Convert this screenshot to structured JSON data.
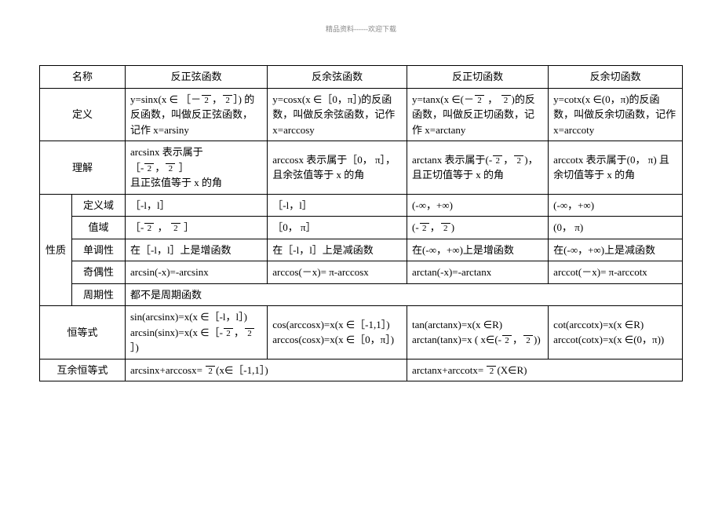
{
  "pageHeader": "精品资料------欢迎下载",
  "header": {
    "name": "名称",
    "arcsin": "反正弦函数",
    "arccos": "反余弦函数",
    "arctan": "反正切函数",
    "arccot": "反余切函数"
  },
  "def": {
    "label": "定义",
    "arcsin_a": "y=sinx(x  ∈ ［－",
    "arcsin_b": "，",
    "arcsin_c": "］)  的反函数，叫做反正弦函数，记作 x=arsiny",
    "arccos_a": "y=cosx(x  ∈［0，π］)的反函数，叫做反余弦函数，记作 x=arccosy",
    "arctan_a": "y=tanx(x   ∈(－",
    "arctan_b": " ，  ",
    "arctan_c": ")的反函数，叫做反正切函数，记作 x=arctany",
    "arccot_a": "y=cotx(x   ∈(0，π)的反函数，叫做反余切函数，记作 x=arccoty"
  },
  "und": {
    "label": "理解",
    "arcsin_a": "arcsinx  表示属于",
    "arcsin_b": "［-",
    "arcsin_c": "，",
    "arcsin_d": " ］",
    "arcsin_e": "且正弦值等于 x 的角",
    "arccos_a": "arccosx  表示属于［0， π］，且余弦值等于 x 的角",
    "arctan_a": "arctanx  表示属于(-",
    "arctan_b": "，",
    "arctan_c": ")，且正切值等于 x 的角",
    "arccot_a": "arccotx   表示属于(0，  π)  且余切值等于 x 的角"
  },
  "prop": {
    "groupLabel": "性质",
    "domain": {
      "label": "定义域",
      "arcsin": "［-l，l］",
      "arccos": "［-l，l］",
      "arctan": "(-∞，+∞)",
      "arccot": "(-∞，+∞)"
    },
    "range": {
      "label": "值域",
      "arcsin_a": "［-",
      "arcsin_b": " ，  ",
      "arcsin_c": " ］",
      "arccos": "［0， π］",
      "arctan_a": "(-",
      "arctan_b": "，",
      "arctan_c": ")",
      "arccot": "(0，  π)"
    },
    "mono": {
      "label": "单调性",
      "arcsin": "在［-l，l］上是增函数",
      "arccos": "在［-l，l］上是减函数",
      "arctan": "在(-∞，+∞)上是增函数",
      "arccot": "在(-∞，+∞)上是减函数"
    },
    "parity": {
      "label": "奇偶性",
      "arcsin": "arcsin(-x)=-arcsinx",
      "arccos": "arccos(－x)= π-arccosx",
      "arctan": "arctan(-x)=-arctanx",
      "arccot": "arccot(－x)= π-arccotx"
    },
    "period": {
      "label": "周期性",
      "text": "都不是周期函数"
    }
  },
  "ident": {
    "label": "恒等式",
    "arcsin_a": "sin(arcsinx)=x(x    ∈［-l，l］)",
    "arcsin_b": "arcsin(sinx)=x(x    ∈［-",
    "arcsin_c": "，",
    "arcsin_d": " ］)",
    "arccos_a": "cos(arccosx)=x(x    ∈［-1,1］)",
    "arccos_b": "arccos(cosx)=x(x    ∈［0，π］)",
    "arctan_a": "tan(arctanx)=x(x    ∈R)",
    "arctan_b": "arctan(tanx)=x     ( x∈(-",
    "arctan_c": "，",
    "arctan_d": "))",
    "arccot_a": "cot(arccotx)=x(x    ∈R)",
    "arccot_b": "arccot(cotx)=x(x    ∈(0，π))"
  },
  "comp": {
    "label": "互余恒等式",
    "left_a": "arcsinx+arccosx=    ",
    "left_b": "(x∈［-1,1］)",
    "right_a": "arctanx+arccotx=     ",
    "right_b": "(X∈R)"
  },
  "frac": {
    "blank": " ",
    "two": "2"
  }
}
